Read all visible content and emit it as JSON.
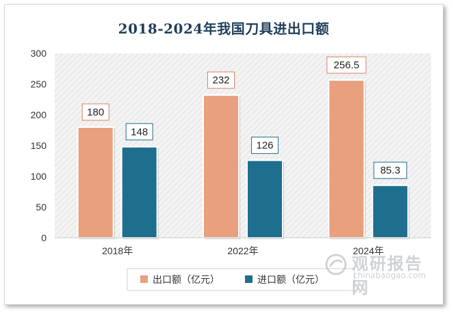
{
  "chart_data": {
    "type": "bar",
    "title": "2018-2024年我国刀具进出口额",
    "categories": [
      "2018年",
      "2022年",
      "2024年"
    ],
    "series": [
      {
        "name": "出口额（亿元）",
        "values": [
          180,
          232,
          256.5
        ],
        "color": "#e8a07e"
      },
      {
        "name": "进口额（亿元）",
        "values": [
          148,
          126,
          85.3
        ],
        "color": "#1e6e8e"
      }
    ],
    "data_labels": [
      [
        "180",
        "232",
        "256.5"
      ],
      [
        "148",
        "126",
        "85.3"
      ]
    ],
    "yticks": [
      "0",
      "50",
      "100",
      "150",
      "200",
      "250",
      "300"
    ],
    "ylim": [
      0,
      300
    ],
    "xlabel": "",
    "ylabel": "",
    "grid": false,
    "legend": "bottom"
  },
  "watermark": {
    "name": "观研报告网",
    "url": "chinabaogao.com"
  }
}
